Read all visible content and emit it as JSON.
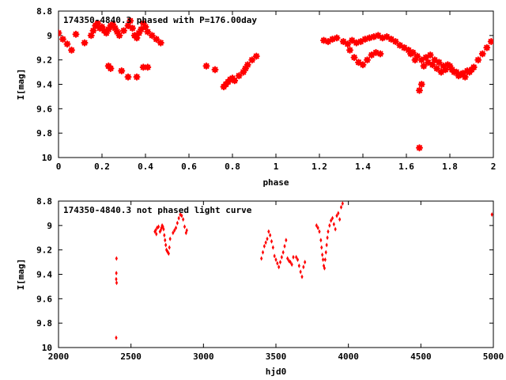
{
  "chart_data": [
    {
      "type": "scatter",
      "title": "174350-4840.3 phased with P=176.00day",
      "xlabel": "phase",
      "ylabel": "I[mag]",
      "xlim": [
        0,
        2
      ],
      "ylim": [
        10,
        8.8
      ],
      "x_ticks": [
        "0",
        "0.2",
        "0.4",
        "0.6",
        "0.8",
        "1",
        "1.2",
        "1.4",
        "1.6",
        "1.8",
        "2"
      ],
      "y_ticks": [
        "8.8",
        "9",
        "9.2",
        "9.4",
        "9.6",
        "9.8",
        "10"
      ],
      "grid": false,
      "marker": "star",
      "color": "#ff0000",
      "x": [
        0.0,
        0.02,
        0.04,
        0.06,
        0.08,
        0.12,
        0.15,
        0.16,
        0.17,
        0.18,
        0.19,
        0.2,
        0.21,
        0.22,
        0.23,
        0.24,
        0.25,
        0.26,
        0.27,
        0.28,
        0.3,
        0.32,
        0.33,
        0.34,
        0.35,
        0.36,
        0.37,
        0.38,
        0.39,
        0.4,
        0.41,
        0.43,
        0.45,
        0.47,
        0.23,
        0.24,
        0.29,
        0.32,
        0.36,
        0.39,
        0.41,
        0.68,
        0.72,
        0.76,
        0.77,
        0.78,
        0.79,
        0.8,
        0.81,
        0.83,
        0.85,
        0.86,
        0.87,
        0.89,
        0.91,
        1.22,
        1.24,
        1.26,
        1.28,
        1.31,
        1.33,
        1.35,
        1.37,
        1.39,
        1.41,
        1.43,
        1.45,
        1.47,
        1.49,
        1.51,
        1.53,
        1.55,
        1.57,
        1.59,
        1.61,
        1.63,
        1.65,
        1.67,
        1.69,
        1.71,
        1.73,
        1.75,
        1.77,
        1.79,
        1.81,
        1.83,
        1.85,
        1.87,
        1.89,
        1.91,
        1.93,
        1.95,
        1.97,
        1.99,
        1.34,
        1.36,
        1.38,
        1.4,
        1.42,
        1.44,
        1.46,
        1.48,
        1.62,
        1.64,
        1.66,
        1.67,
        1.68,
        1.7,
        1.72,
        1.74,
        1.76,
        1.78,
        1.8,
        1.82,
        1.84,
        1.86,
        1.88,
        1.9,
        1.66
      ],
      "y": [
        8.98,
        9.03,
        9.07,
        9.12,
        8.99,
        9.06,
        9.0,
        8.96,
        8.92,
        8.9,
        8.94,
        8.93,
        8.96,
        8.98,
        8.95,
        8.92,
        8.91,
        8.94,
        8.97,
        9.0,
        8.96,
        8.92,
        8.88,
        8.94,
        9.0,
        9.02,
        8.98,
        8.95,
        8.9,
        8.93,
        8.97,
        9.0,
        9.03,
        9.06,
        9.25,
        9.27,
        9.29,
        9.34,
        9.34,
        9.26,
        9.26,
        9.25,
        9.28,
        9.42,
        9.4,
        9.38,
        9.36,
        9.35,
        9.37,
        9.33,
        9.3,
        9.27,
        9.24,
        9.2,
        9.17,
        9.04,
        9.05,
        9.03,
        9.02,
        9.05,
        9.07,
        9.04,
        9.06,
        9.05,
        9.03,
        9.02,
        9.01,
        9.0,
        9.02,
        9.01,
        9.03,
        9.05,
        9.08,
        9.1,
        9.12,
        9.14,
        9.17,
        9.2,
        9.18,
        9.16,
        9.2,
        9.22,
        9.25,
        9.24,
        9.28,
        9.3,
        9.32,
        9.34,
        9.3,
        9.26,
        9.2,
        9.15,
        9.1,
        9.05,
        9.12,
        9.18,
        9.22,
        9.24,
        9.2,
        9.16,
        9.14,
        9.15,
        9.15,
        9.2,
        9.45,
        9.4,
        9.25,
        9.22,
        9.24,
        9.27,
        9.3,
        9.28,
        9.25,
        9.3,
        9.33,
        9.31,
        9.29,
        9.28,
        9.92
      ]
    },
    {
      "type": "scatter",
      "title": "174350-4840.3 not phased light curve",
      "xlabel": "hjd0",
      "ylabel": "I[mag]",
      "xlim": [
        2000,
        5000
      ],
      "ylim": [
        10,
        8.8
      ],
      "x_ticks": [
        "2000",
        "2500",
        "3000",
        "3500",
        "4000",
        "4500",
        "5000"
      ],
      "y_ticks": [
        "8.8",
        "9",
        "9.2",
        "9.4",
        "9.6",
        "9.8",
        "10"
      ],
      "grid": false,
      "marker": "dot",
      "color": "#ff0000",
      "x": [
        2398,
        2398,
        2399,
        2400,
        2401,
        2665,
        2670,
        2675,
        2680,
        2690,
        2700,
        2705,
        2710,
        2715,
        2720,
        2725,
        2730,
        2735,
        2740,
        2745,
        2750,
        2755,
        2760,
        2765,
        2770,
        2790,
        2800,
        2810,
        2820,
        2830,
        2840,
        2850,
        2860,
        2870,
        2880,
        2885,
        3400,
        3410,
        3420,
        3430,
        3440,
        3450,
        3460,
        3470,
        3480,
        3490,
        3500,
        3510,
        3520,
        3530,
        3540,
        3550,
        3560,
        3570,
        3580,
        3590,
        3600,
        3610,
        3620,
        3640,
        3650,
        3660,
        3670,
        3680,
        3690,
        3700,
        3780,
        3790,
        3800,
        3810,
        3815,
        3820,
        3825,
        3830,
        3835,
        3840,
        3845,
        3850,
        3855,
        3860,
        3870,
        3880,
        3890,
        3900,
        3910,
        3920,
        3930,
        3940,
        3950,
        3960,
        4990
      ],
      "y": [
        9.92,
        9.44,
        9.39,
        9.27,
        9.47,
        9.05,
        9.04,
        9.07,
        9.02,
        9.01,
        9.05,
        9.04,
        9.02,
        9.0,
        9.01,
        9.03,
        9.08,
        9.12,
        9.16,
        9.2,
        9.21,
        9.22,
        9.23,
        9.18,
        9.11,
        9.06,
        9.04,
        9.02,
        8.98,
        8.94,
        8.91,
        8.92,
        8.95,
        9.01,
        9.06,
        9.04,
        9.27,
        9.22,
        9.17,
        9.14,
        9.11,
        9.05,
        9.08,
        9.13,
        9.18,
        9.25,
        9.28,
        9.31,
        9.34,
        9.3,
        9.26,
        9.22,
        9.17,
        9.12,
        9.27,
        9.29,
        9.3,
        9.32,
        9.26,
        9.26,
        9.28,
        9.33,
        9.38,
        9.42,
        9.34,
        9.3,
        9.0,
        9.02,
        9.05,
        9.12,
        9.18,
        9.24,
        9.28,
        9.33,
        9.35,
        9.28,
        9.22,
        9.16,
        9.1,
        9.05,
        9.0,
        8.96,
        8.94,
        8.99,
        9.03,
        8.92,
        8.9,
        8.95,
        8.85,
        8.82,
        8.91
      ]
    }
  ]
}
